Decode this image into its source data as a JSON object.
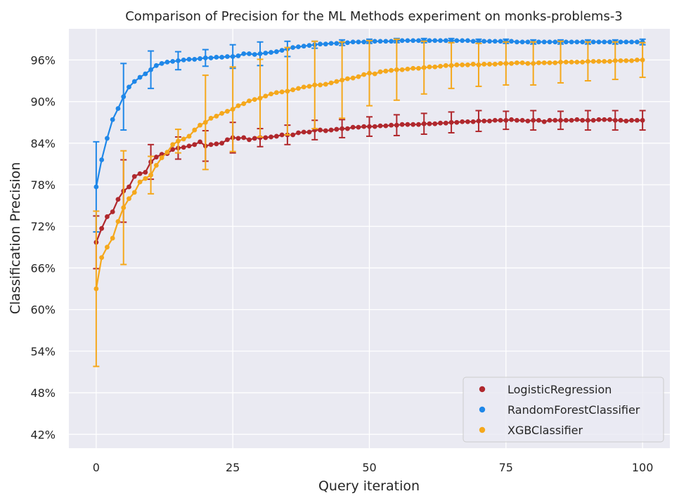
{
  "chart_data": {
    "type": "line",
    "title": "Comparison of Precision for the ML Methods experiment on monks-problems-3",
    "xlabel": "Query iteration",
    "ylabel": "Classification Precision",
    "xlim": [
      -5,
      105
    ],
    "ylim": [
      0.4,
      1.005
    ],
    "xticks": [
      0,
      25,
      50,
      75,
      100
    ],
    "xtick_labels": [
      "0",
      "25",
      "50",
      "75",
      "100"
    ],
    "yticks": [
      0.42,
      0.48,
      0.54,
      0.6,
      0.66,
      0.72,
      0.78,
      0.84,
      0.9,
      0.96
    ],
    "ytick_labels": [
      "42%",
      "48%",
      "54%",
      "60%",
      "66%",
      "72%",
      "78%",
      "84%",
      "90%",
      "96%"
    ],
    "grid": true,
    "legend_position": "bottom-right",
    "x": [
      0,
      1,
      2,
      3,
      4,
      5,
      6,
      7,
      8,
      9,
      10,
      11,
      12,
      13,
      14,
      15,
      16,
      17,
      18,
      19,
      20,
      21,
      22,
      23,
      24,
      25,
      26,
      27,
      28,
      29,
      30,
      31,
      32,
      33,
      34,
      35,
      36,
      37,
      38,
      39,
      40,
      41,
      42,
      43,
      44,
      45,
      46,
      47,
      48,
      49,
      50,
      51,
      52,
      53,
      54,
      55,
      56,
      57,
      58,
      59,
      60,
      61,
      62,
      63,
      64,
      65,
      66,
      67,
      68,
      69,
      70,
      71,
      72,
      73,
      74,
      75,
      76,
      77,
      78,
      79,
      80,
      81,
      82,
      83,
      84,
      85,
      86,
      87,
      88,
      89,
      90,
      91,
      92,
      93,
      94,
      95,
      96,
      97,
      98,
      99,
      100
    ],
    "series": [
      {
        "name": "LogisticRegression",
        "color": "#b0282d",
        "values": [
          0.697,
          0.717,
          0.734,
          0.741,
          0.759,
          0.771,
          0.777,
          0.792,
          0.796,
          0.798,
          0.813,
          0.82,
          0.824,
          0.825,
          0.831,
          0.833,
          0.834,
          0.836,
          0.838,
          0.842,
          0.836,
          0.838,
          0.839,
          0.84,
          0.845,
          0.848,
          0.847,
          0.848,
          0.845,
          0.847,
          0.848,
          0.848,
          0.849,
          0.85,
          0.852,
          0.852,
          0.852,
          0.855,
          0.856,
          0.856,
          0.859,
          0.859,
          0.858,
          0.859,
          0.86,
          0.861,
          0.861,
          0.863,
          0.863,
          0.864,
          0.864,
          0.864,
          0.865,
          0.865,
          0.866,
          0.866,
          0.867,
          0.867,
          0.867,
          0.867,
          0.868,
          0.868,
          0.868,
          0.869,
          0.869,
          0.87,
          0.87,
          0.871,
          0.871,
          0.871,
          0.872,
          0.872,
          0.872,
          0.873,
          0.873,
          0.873,
          0.874,
          0.873,
          0.873,
          0.872,
          0.873,
          0.873,
          0.871,
          0.873,
          0.873,
          0.873,
          0.873,
          0.873,
          0.874,
          0.873,
          0.873,
          0.873,
          0.874,
          0.874,
          0.874,
          0.873,
          0.873,
          0.872,
          0.873,
          0.873,
          0.873
        ],
        "error": {
          "0": 0.038,
          "5": 0.045,
          "10": 0.025,
          "15": 0.016,
          "20": 0.022,
          "25": 0.022,
          "30": 0.013,
          "35": 0.014,
          "40": 0.014,
          "45": 0.013,
          "50": 0.014,
          "55": 0.015,
          "60": 0.015,
          "65": 0.015,
          "70": 0.015,
          "75": 0.013,
          "80": 0.014,
          "85": 0.013,
          "90": 0.014,
          "95": 0.014,
          "100": 0.014
        }
      },
      {
        "name": "RandomForestClassifier",
        "color": "#1f87e8",
        "values": [
          0.777,
          0.816,
          0.847,
          0.874,
          0.89,
          0.907,
          0.921,
          0.929,
          0.935,
          0.94,
          0.946,
          0.952,
          0.955,
          0.957,
          0.958,
          0.959,
          0.96,
          0.961,
          0.961,
          0.962,
          0.963,
          0.963,
          0.964,
          0.964,
          0.965,
          0.965,
          0.966,
          0.969,
          0.969,
          0.968,
          0.969,
          0.97,
          0.971,
          0.972,
          0.974,
          0.976,
          0.978,
          0.979,
          0.98,
          0.981,
          0.982,
          0.983,
          0.983,
          0.984,
          0.984,
          0.985,
          0.985,
          0.986,
          0.986,
          0.986,
          0.987,
          0.987,
          0.987,
          0.987,
          0.987,
          0.988,
          0.988,
          0.988,
          0.988,
          0.988,
          0.988,
          0.988,
          0.988,
          0.988,
          0.988,
          0.988,
          0.988,
          0.988,
          0.988,
          0.987,
          0.987,
          0.987,
          0.987,
          0.987,
          0.987,
          0.987,
          0.987,
          0.986,
          0.986,
          0.986,
          0.986,
          0.986,
          0.986,
          0.986,
          0.986,
          0.986,
          0.986,
          0.986,
          0.986,
          0.986,
          0.986,
          0.986,
          0.986,
          0.986,
          0.986,
          0.986,
          0.986,
          0.986,
          0.986,
          0.986,
          0.986
        ],
        "error": {
          "0": 0.065,
          "5": 0.048,
          "10": 0.027,
          "15": 0.013,
          "20": 0.012,
          "25": 0.017,
          "30": 0.017,
          "35": 0.011,
          "40": 0.005,
          "45": 0.004,
          "50": 0.003,
          "55": 0.003,
          "60": 0.003,
          "65": 0.003,
          "70": 0.003,
          "75": 0.003,
          "80": 0.003,
          "85": 0.003,
          "90": 0.003,
          "95": 0.003,
          "100": 0.004
        }
      },
      {
        "name": "XGBClassifier",
        "color": "#f5a81c",
        "values": [
          0.63,
          0.675,
          0.69,
          0.703,
          0.727,
          0.747,
          0.76,
          0.769,
          0.784,
          0.789,
          0.794,
          0.808,
          0.819,
          0.827,
          0.838,
          0.843,
          0.846,
          0.85,
          0.859,
          0.866,
          0.87,
          0.876,
          0.879,
          0.883,
          0.886,
          0.889,
          0.894,
          0.897,
          0.901,
          0.903,
          0.905,
          0.908,
          0.911,
          0.913,
          0.914,
          0.915,
          0.917,
          0.919,
          0.921,
          0.922,
          0.924,
          0.924,
          0.925,
          0.927,
          0.929,
          0.931,
          0.933,
          0.934,
          0.936,
          0.939,
          0.941,
          0.94,
          0.943,
          0.944,
          0.945,
          0.946,
          0.946,
          0.947,
          0.948,
          0.948,
          0.949,
          0.95,
          0.95,
          0.951,
          0.952,
          0.952,
          0.953,
          0.953,
          0.953,
          0.954,
          0.953,
          0.954,
          0.954,
          0.954,
          0.955,
          0.955,
          0.955,
          0.956,
          0.956,
          0.955,
          0.955,
          0.956,
          0.956,
          0.956,
          0.956,
          0.957,
          0.957,
          0.957,
          0.957,
          0.957,
          0.958,
          0.958,
          0.958,
          0.958,
          0.958,
          0.959,
          0.959,
          0.959,
          0.959,
          0.96,
          0.96
        ],
        "error": {
          "0": 0.112,
          "5": 0.082,
          "10": 0.027,
          "15": 0.017,
          "20": 0.068,
          "25": 0.061,
          "30": 0.056,
          "35": 0.063,
          "40": 0.063,
          "45": 0.055,
          "50": 0.047,
          "55": 0.044,
          "60": 0.038,
          "65": 0.033,
          "70": 0.031,
          "75": 0.031,
          "80": 0.031,
          "85": 0.03,
          "90": 0.028,
          "95": 0.027,
          "100": 0.025
        }
      }
    ]
  }
}
